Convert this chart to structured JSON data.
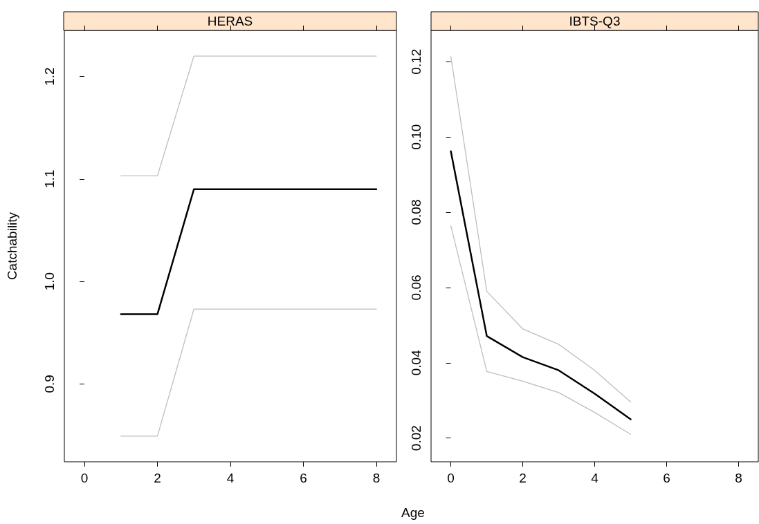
{
  "chart_data": [
    {
      "type": "line",
      "title": "HERAS",
      "ylabel": "Catchability",
      "x": [
        1,
        2,
        3,
        4,
        5,
        6,
        7,
        8
      ],
      "series": [
        {
          "color": "#bebebe",
          "values": [
            1.103,
            1.103,
            1.22,
            1.22,
            1.22,
            1.22,
            1.22,
            1.22
          ]
        },
        {
          "color": "#bebebe",
          "values": [
            0.849,
            0.849,
            0.973,
            0.973,
            0.973,
            0.973,
            0.973,
            0.973
          ]
        },
        {
          "color": "#000000",
          "values": [
            0.968,
            0.968,
            1.09,
            1.09,
            1.09,
            1.09,
            1.09,
            1.09
          ]
        }
      ],
      "xlim": [
        -0.55,
        8.55
      ],
      "xticks": [
        0,
        2,
        4,
        6,
        8
      ],
      "ylim": [
        0.824,
        1.245
      ],
      "yticks": [
        0.9,
        {
          "value": 1,
          "label": "1.0"
        },
        1.1,
        1.2
      ]
    },
    {
      "type": "line",
      "title": "IBTS-Q3",
      "xlabel": "Age",
      "x": [
        0,
        1,
        2,
        3,
        4,
        5
      ],
      "series": [
        {
          "color": "#bebebe",
          "values": [
            0.1214,
            0.059,
            0.049,
            0.0449,
            0.038,
            0.0296
          ]
        },
        {
          "color": "#bebebe",
          "values": [
            0.0764,
            0.0377,
            0.0351,
            0.0321,
            0.0268,
            0.021
          ]
        },
        {
          "color": "#000000",
          "values": [
            0.0962,
            0.0471,
            0.0415,
            0.038,
            0.0318,
            0.025
          ]
        }
      ],
      "xlim": [
        -0.55,
        8.55
      ],
      "xticks": [
        0,
        2,
        4,
        6,
        8
      ],
      "ylim": [
        0.0137,
        0.1283
      ],
      "yticks": [
        0.02,
        0.04,
        0.06,
        0.08,
        {
          "value": 0.1,
          "label": "0.10"
        },
        0.12
      ]
    }
  ]
}
